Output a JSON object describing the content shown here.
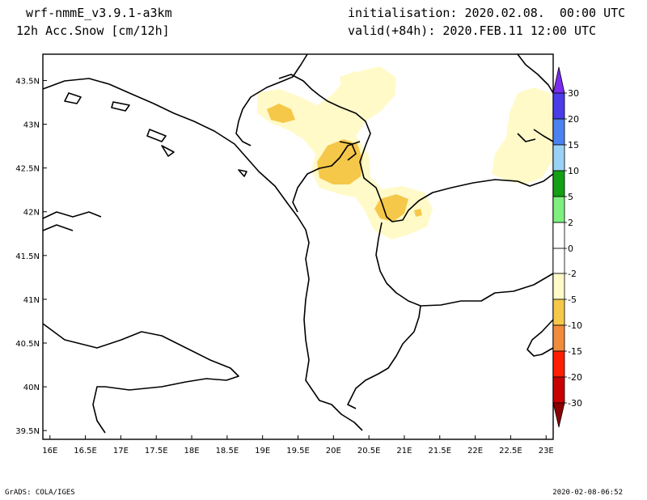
{
  "header": {
    "model": "wrf-nmmE_v3.9.1-a3km",
    "field": "12h Acc.Snow [cm/12h]",
    "init": "initialisation: 2020.02.08.  00:00 UTC",
    "valid": "valid(+84h): 2020.FEB.11 12:00 UTC"
  },
  "footer": {
    "left": "GrADS: COLA/IGES",
    "right": "2020-02-08-06:52"
  },
  "map": {
    "lon_ticks": [
      "16E",
      "16.5E",
      "17E",
      "17.5E",
      "18E",
      "18.5E",
      "19E",
      "19.5E",
      "20E",
      "20.5E",
      "21E",
      "21.5E",
      "22E",
      "22.5E",
      "23E"
    ],
    "lat_ticks": [
      "43.5N",
      "43N",
      "42.5N",
      "42N",
      "41.5N",
      "41N",
      "40.5N",
      "40N",
      "39.5N"
    ],
    "lon_values": [
      16,
      16.5,
      17,
      17.5,
      18,
      18.5,
      19,
      19.5,
      20,
      20.5,
      21,
      21.5,
      22,
      22.5,
      23
    ],
    "lat_values": [
      43.5,
      43,
      42.5,
      42,
      41.5,
      41,
      40.5,
      40,
      39.5
    ],
    "lon_range": [
      15.9,
      23.1
    ],
    "lat_range": [
      39.4,
      43.8
    ]
  },
  "colorbar": {
    "labels": [
      "30",
      "20",
      "15",
      "10",
      "5",
      "2",
      "0",
      "-2",
      "-5",
      "-10",
      "-15",
      "-20",
      "-30"
    ],
    "colors_top": [
      "#7b2cf0",
      "#4a3ce8",
      "#4a82f0",
      "#9ad2f5",
      "#14a014",
      "#7ef07e",
      "#ffffff"
    ],
    "colors_bottom": [
      "#ffffff",
      "#fffac8",
      "#f5c84a",
      "#f08c3c",
      "#ff1e00",
      "#c80000",
      "#8c0000"
    ]
  },
  "colors": {
    "snow_light": "#fffac8",
    "snow_medium": "#f5c84a",
    "border": "#000000"
  }
}
